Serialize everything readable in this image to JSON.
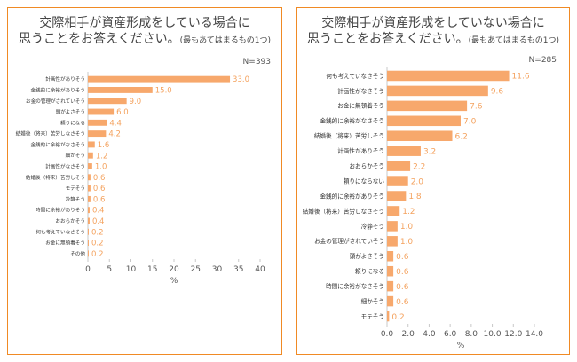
{
  "charts": [
    {
      "title_line1": "交際相手が資産形成をしている場合に",
      "title_line2": "思うことをお答えください。",
      "title_note": "(最もあてはまるもの1つ)",
      "n_label": "N=393"
    },
    {
      "title_line1": "交際相手が資産形成をしていない場合に",
      "title_line2": "思うことをお答えください。",
      "title_note": "(最もあてはまるもの1つ)",
      "n_label": "N=285"
    }
  ],
  "chart_data": [
    {
      "type": "bar",
      "orientation": "horizontal",
      "categories": [
        "計画性がありそう",
        "金銭的に余裕がありそう",
        "お金の管理がされていそう",
        "頭がよさそう",
        "頼りになる",
        "結婚後（将来）苦労しなさそう",
        "金銭的に余裕がなさそう",
        "細かそう",
        "計画性がなさそう",
        "結婚後（将来）苦労しそう",
        "モテそう",
        "冷静そう",
        "時間に余裕がありそう",
        "おおらかそう",
        "何も考えていなさそう",
        "お金に無頓着そう",
        "その他"
      ],
      "values": [
        33.0,
        15.0,
        9.0,
        6.0,
        4.4,
        4.2,
        1.6,
        1.2,
        1.0,
        0.6,
        0.6,
        0.6,
        0.4,
        0.4,
        0.2,
        0.2,
        0.2
      ],
      "value_labels": [
        "33.0",
        "15.0",
        "9.0",
        "6.0",
        "4.4",
        "4.2",
        "1.6",
        "1.2",
        "1.0",
        "0.6",
        "0.6",
        "0.6",
        "0.4",
        "0.4",
        "0.2",
        "0.2",
        "0.2"
      ],
      "xlim": [
        0,
        40
      ],
      "ticks": [
        "0",
        "5",
        "10",
        "15",
        "20",
        "25",
        "30",
        "35",
        "40"
      ],
      "xlabel": "%",
      "bar_color": "#f7a86c",
      "label_color": "#f4a25e"
    },
    {
      "type": "bar",
      "orientation": "horizontal",
      "categories": [
        "何も考えていなさそう",
        "計画性がなさそう",
        "お金に無頓着そう",
        "金銭的に余裕がなさそう",
        "結婚後（将来）苦労しそう",
        "計画性がありそう",
        "おおらかそう",
        "頼りにならない",
        "金銭的に余裕がありそう",
        "結婚後（将来）苦労しなさそう",
        "冷静そう",
        "お金の管理がされていそう",
        "頭がよさそう",
        "頼りになる",
        "時間に余裕がなさそう",
        "細かそう",
        "モテそう"
      ],
      "values": [
        11.6,
        9.6,
        7.6,
        7.0,
        6.2,
        3.2,
        2.2,
        2.0,
        1.8,
        1.2,
        1.0,
        1.0,
        0.6,
        0.6,
        0.6,
        0.6,
        0.2
      ],
      "value_labels": [
        "11.6",
        "9.6",
        "7.6",
        "7.0",
        "6.2",
        "3.2",
        "2.2",
        "2.0",
        "1.8",
        "1.2",
        "1.0",
        "1.0",
        "0.6",
        "0.6",
        "0.6",
        "0.6",
        "0.2"
      ],
      "xlim": [
        0,
        14
      ],
      "ticks": [
        "0.0",
        "2.0",
        "4.0",
        "6.0",
        "8.0",
        "10.0",
        "12.0",
        "14.0"
      ],
      "xlabel": "%",
      "bar_color": "#f7a86c",
      "label_color": "#f4a25e"
    }
  ]
}
